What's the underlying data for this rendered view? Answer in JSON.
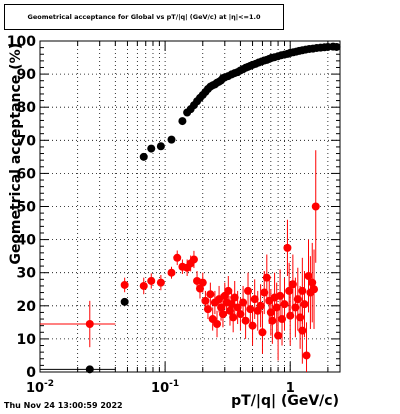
{
  "chart_data": {
    "type": "scatter",
    "title": "Geometrical acceptance for Global vs pT/|q| (GeV/c) at |η|<=1.0",
    "xlabel": "pT/|q| (GeV/c)",
    "ylabel": "Geometrical acceptance (%)",
    "x_scale": "log",
    "xlim": [
      0.01,
      2.5
    ],
    "ylim": [
      0,
      100
    ],
    "x_tick_labels": [
      "10^-2",
      "10^-1",
      "1"
    ],
    "y_tick_labels": [
      "0",
      "10",
      "20",
      "30",
      "40",
      "50",
      "60",
      "70",
      "80",
      "90",
      "100"
    ],
    "grid": true,
    "series": [
      {
        "color": "#000000",
        "points": [
          [
            0.025,
            0.8
          ],
          [
            0.0475,
            21.2
          ],
          [
            0.0675,
            65
          ],
          [
            0.0775,
            67.5
          ],
          [
            0.0925,
            68.2
          ],
          [
            0.1125,
            70.2
          ],
          [
            0.1375,
            75.8
          ],
          [
            0.15,
            78.4
          ],
          [
            0.16,
            79.4
          ],
          [
            0.17,
            80.6
          ],
          [
            0.18,
            81.8
          ],
          [
            0.19,
            82.8
          ],
          [
            0.2,
            83.7
          ],
          [
            0.21,
            84.6
          ],
          [
            0.22,
            85.5
          ],
          [
            0.23,
            86.2
          ],
          [
            0.24,
            86.6
          ],
          [
            0.25,
            86.9
          ],
          [
            0.26,
            87.4
          ],
          [
            0.27,
            87.7
          ],
          [
            0.28,
            88.1
          ],
          [
            0.29,
            88.8
          ],
          [
            0.3,
            89.0
          ],
          [
            0.32,
            89.4
          ],
          [
            0.34,
            89.9
          ],
          [
            0.36,
            90.3
          ],
          [
            0.38,
            90.6
          ],
          [
            0.4,
            91.1
          ],
          [
            0.42,
            91.5
          ],
          [
            0.44,
            91.9
          ],
          [
            0.46,
            92.2
          ],
          [
            0.48,
            92.5
          ],
          [
            0.5,
            92.8
          ],
          [
            0.53,
            93.1
          ],
          [
            0.56,
            93.5
          ],
          [
            0.59,
            93.8
          ],
          [
            0.62,
            94.1
          ],
          [
            0.65,
            94.3
          ],
          [
            0.68,
            94.6
          ],
          [
            0.71,
            94.9
          ],
          [
            0.75,
            95.1
          ],
          [
            0.8,
            95.4
          ],
          [
            0.85,
            95.7
          ],
          [
            0.9,
            95.9
          ],
          [
            0.95,
            96.1
          ],
          [
            1.0,
            96.4
          ],
          [
            1.06,
            96.6
          ],
          [
            1.12,
            96.8
          ],
          [
            1.18,
            97.0
          ],
          [
            1.25,
            97.2
          ],
          [
            1.33,
            97.4
          ],
          [
            1.42,
            97.6
          ],
          [
            1.52,
            97.7
          ],
          [
            1.63,
            97.9
          ],
          [
            1.75,
            98.0
          ],
          [
            1.88,
            98.1
          ],
          [
            2.0,
            98.2
          ],
          [
            2.2,
            98.3
          ],
          [
            2.35,
            98.2
          ]
        ]
      },
      {
        "color": "#ff0000",
        "points": [
          [
            0.025,
            14.5,
            7
          ],
          [
            0.0475,
            26.3,
            2.2
          ],
          [
            0.0675,
            26.0,
            2.5
          ],
          [
            0.0775,
            27.5,
            2.3
          ],
          [
            0.0925,
            27.0,
            2.3
          ],
          [
            0.1125,
            30.0,
            1.8
          ],
          [
            0.125,
            34.5,
            2.2
          ],
          [
            0.1375,
            31.8,
            2.2
          ],
          [
            0.15,
            31.5,
            2.5
          ],
          [
            0.16,
            32.8,
            2.4
          ],
          [
            0.17,
            34.0,
            2.6
          ],
          [
            0.18,
            27.5,
            3
          ],
          [
            0.19,
            25.2,
            3
          ],
          [
            0.2,
            27.0,
            3
          ],
          [
            0.21,
            21.5,
            3
          ],
          [
            0.22,
            19.0,
            3
          ],
          [
            0.23,
            23.5,
            3.5
          ],
          [
            0.24,
            16.0,
            3.5
          ],
          [
            0.25,
            21.0,
            3.5
          ],
          [
            0.26,
            14.5,
            4
          ],
          [
            0.27,
            22.0,
            4
          ],
          [
            0.28,
            19.5,
            4
          ],
          [
            0.29,
            17.5,
            4
          ],
          [
            0.3,
            23.0,
            4
          ],
          [
            0.31,
            21.0,
            4
          ],
          [
            0.32,
            24.5,
            4.5
          ],
          [
            0.33,
            18.5,
            4.5
          ],
          [
            0.34,
            20.5,
            4.5
          ],
          [
            0.35,
            16.5,
            4.5
          ],
          [
            0.36,
            22.5,
            5
          ],
          [
            0.38,
            19.5,
            5
          ],
          [
            0.4,
            17.5,
            5
          ],
          [
            0.42,
            21.0,
            5
          ],
          [
            0.44,
            15.5,
            5.5
          ],
          [
            0.46,
            24.5,
            5.5
          ],
          [
            0.48,
            19.0,
            5.5
          ],
          [
            0.5,
            14.0,
            6
          ],
          [
            0.52,
            22.0,
            6
          ],
          [
            0.55,
            18.5,
            6
          ],
          [
            0.58,
            20.0,
            6.5
          ],
          [
            0.6,
            12.0,
            6.5
          ],
          [
            0.62,
            24.0,
            6.5
          ],
          [
            0.65,
            28.5,
            7
          ],
          [
            0.68,
            21.5,
            7
          ],
          [
            0.7,
            18.0,
            7
          ],
          [
            0.72,
            15.5,
            7
          ],
          [
            0.75,
            22.5,
            7.5
          ],
          [
            0.78,
            19.5,
            7.5
          ],
          [
            0.8,
            11.0,
            7.5
          ],
          [
            0.83,
            23.0,
            8
          ],
          [
            0.86,
            16.0,
            8
          ],
          [
            0.9,
            20.5,
            8
          ],
          [
            0.95,
            37.5,
            8.5
          ],
          [
            0.98,
            24.5,
            8.5
          ],
          [
            1.0,
            17.0,
            9
          ],
          [
            1.05,
            26.5,
            9
          ],
          [
            1.1,
            19.5,
            9
          ],
          [
            1.15,
            22.0,
            9.5
          ],
          [
            1.2,
            16.5,
            9.5
          ],
          [
            1.25,
            12.5,
            10
          ],
          [
            1.3,
            20.5,
            10
          ],
          [
            1.35,
            5.0,
            10
          ],
          [
            1.4,
            29.0,
            11
          ],
          [
            1.45,
            24.0,
            11
          ],
          [
            1.5,
            27.0,
            12
          ],
          [
            1.55,
            25.0,
            12
          ],
          [
            1.6,
            50.0,
            17
          ],
          [
            1.25,
            24.5,
            10
          ]
        ]
      }
    ]
  },
  "footer": {
    "timestamp": "Thu Nov 24 13:00:59 2022"
  }
}
